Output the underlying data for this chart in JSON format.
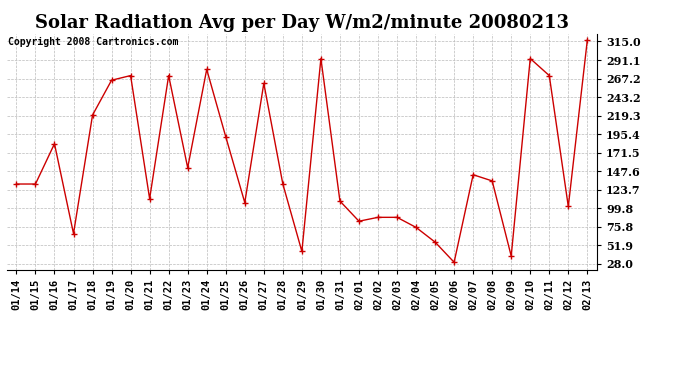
{
  "title": "Solar Radiation Avg per Day W/m2/minute 20080213",
  "copyright": "Copyright 2008 Cartronics.com",
  "dates": [
    "01/14",
    "01/15",
    "01/16",
    "01/17",
    "01/18",
    "01/19",
    "01/20",
    "01/21",
    "01/22",
    "01/23",
    "01/24",
    "01/25",
    "01/26",
    "01/27",
    "01/28",
    "01/29",
    "01/30",
    "01/31",
    "02/01",
    "02/02",
    "02/03",
    "02/04",
    "02/05",
    "02/06",
    "02/07",
    "02/08",
    "02/09",
    "02/10",
    "02/11",
    "02/12",
    "02/13"
  ],
  "values": [
    131,
    131,
    183,
    67,
    220,
    265,
    271,
    112,
    271,
    152,
    279,
    192,
    107,
    261,
    131,
    44,
    293,
    109,
    83,
    88,
    88,
    75,
    56,
    30,
    143,
    135,
    38,
    293,
    271,
    102,
    317
  ],
  "line_color": "#cc0000",
  "marker": "+",
  "bg_color": "#ffffff",
  "grid_color": "#bbbbbb",
  "yticks": [
    28.0,
    51.9,
    75.8,
    99.8,
    123.7,
    147.6,
    171.5,
    195.4,
    219.3,
    243.2,
    267.2,
    291.1,
    315.0
  ],
  "ylim": [
    20,
    325
  ],
  "title_fontsize": 13,
  "tick_fontsize": 7.5,
  "copyright_fontsize": 7
}
